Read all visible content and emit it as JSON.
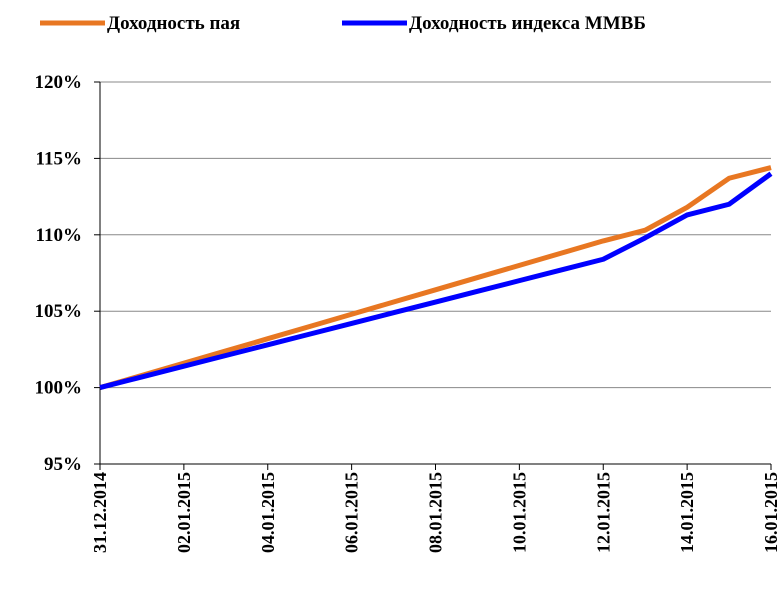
{
  "chart_data": {
    "type": "line",
    "categories": [
      "31.12.2014",
      null,
      "02.01.2015",
      null,
      "04.01.2015",
      null,
      "06.01.2015",
      null,
      "08.01.2015",
      null,
      "10.01.2015",
      null,
      "12.01.2015",
      null,
      "14.01.2015",
      null,
      "16.01.2015"
    ],
    "series": [
      {
        "name": "Доходность пая",
        "color": "#e87722",
        "values": [
          100,
          100.8,
          101.6,
          102.4,
          103.2,
          104,
          104.8,
          105.6,
          106.4,
          107.2,
          108,
          108.8,
          109.6,
          110.3,
          111.8,
          113.7,
          114.4
        ]
      },
      {
        "name": "Доходность индекса ММВБ",
        "color": "#0000ff",
        "values": [
          100,
          100.7,
          101.4,
          102.1,
          102.8,
          103.5,
          104.2,
          104.9,
          105.6,
          106.3,
          107,
          107.7,
          108.4,
          109.8,
          111.3,
          112,
          114
        ]
      }
    ],
    "ylim": [
      95,
      120
    ],
    "yticks": [
      {
        "value": 95,
        "label": "95%"
      },
      {
        "value": 100,
        "label": "100%"
      },
      {
        "value": 105,
        "label": "105%"
      },
      {
        "value": 110,
        "label": "110%"
      },
      {
        "value": 115,
        "label": "115%"
      },
      {
        "value": 120,
        "label": "120%"
      }
    ],
    "grid": true,
    "legend": "top"
  }
}
